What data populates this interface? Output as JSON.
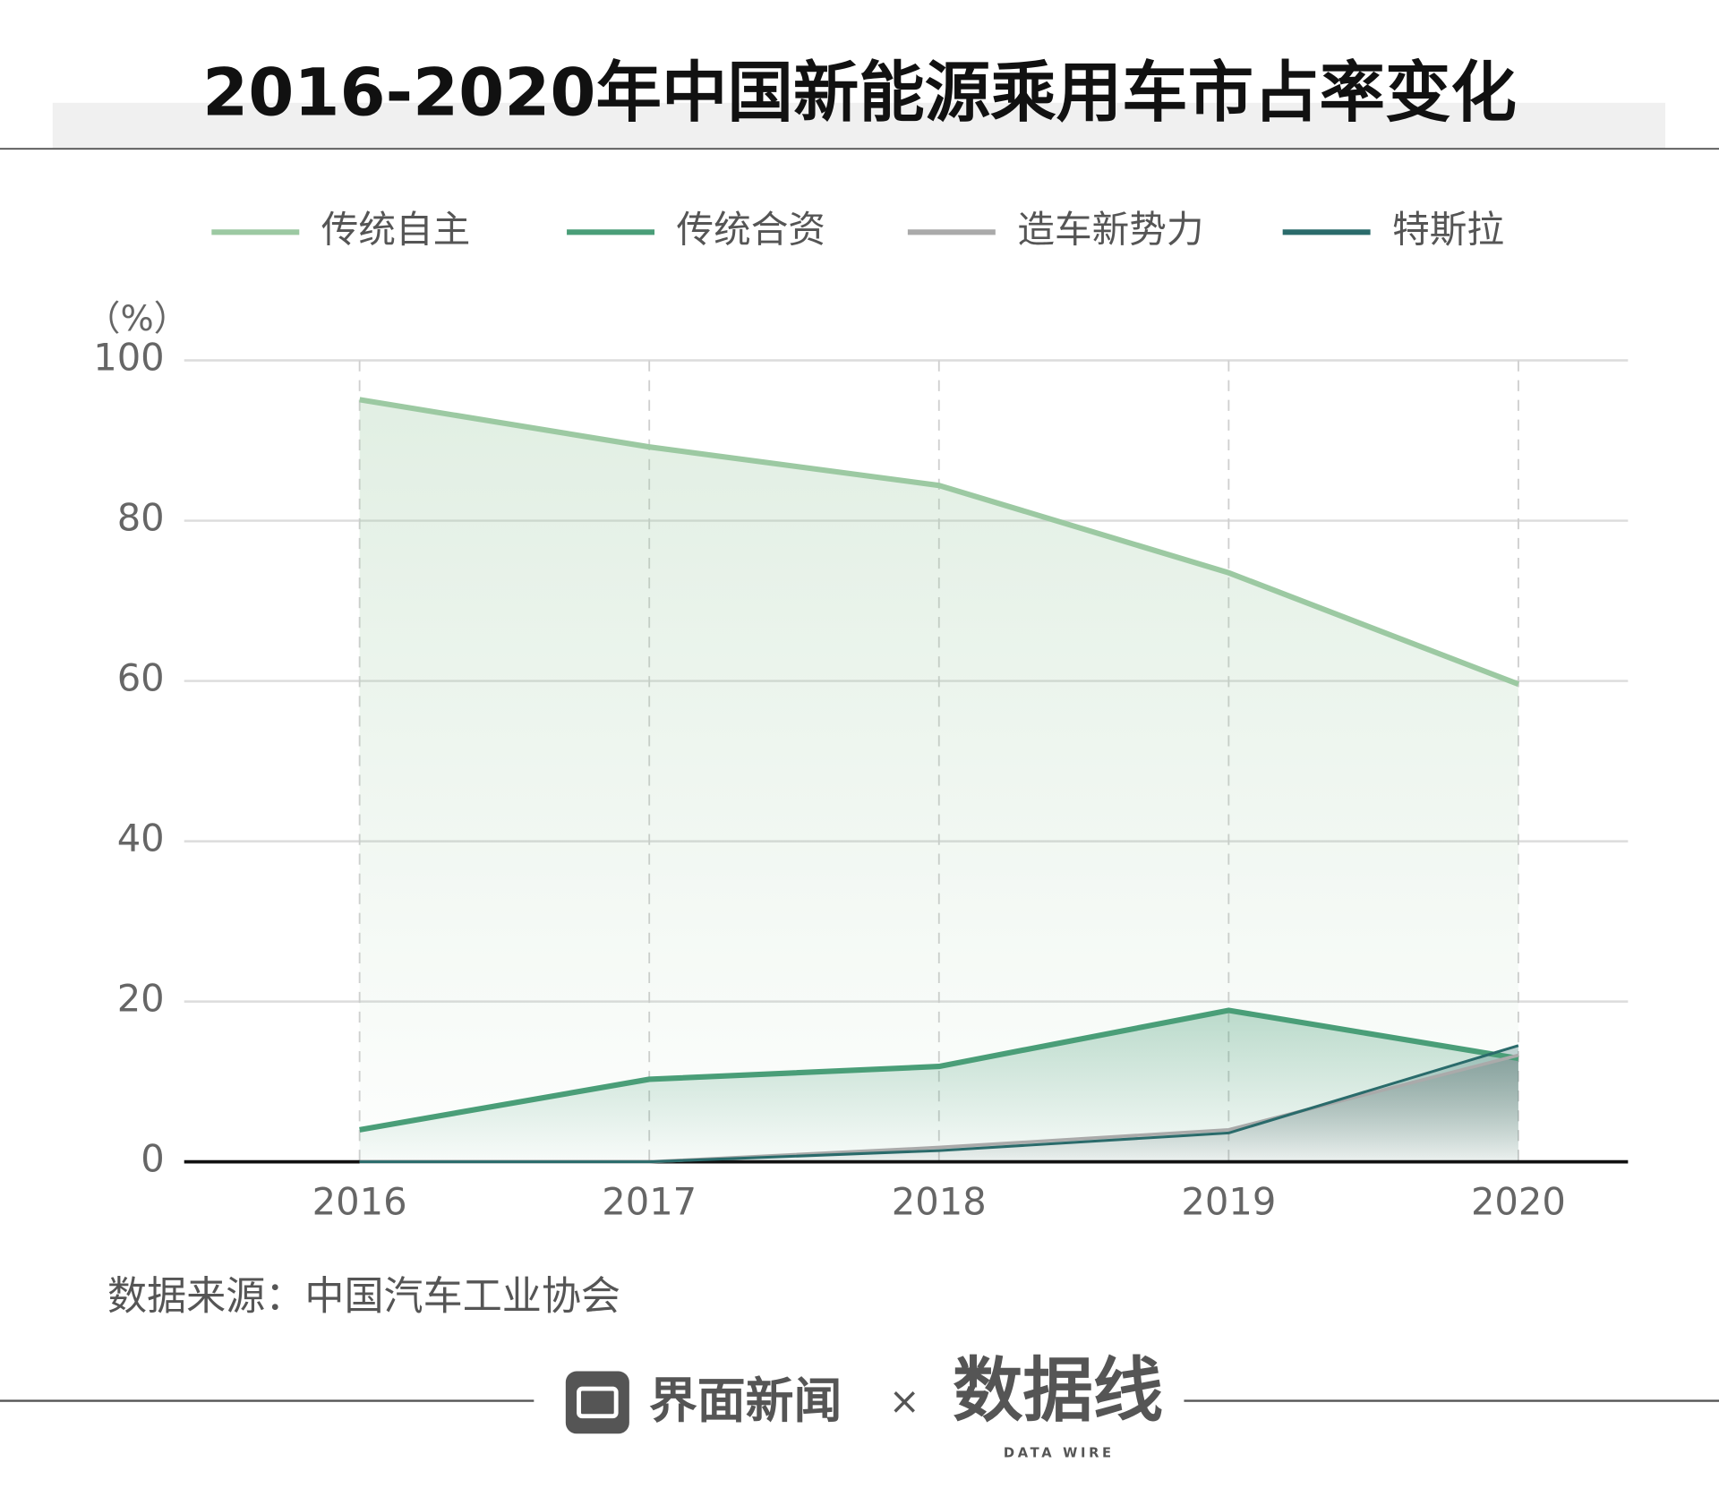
{
  "chart_data": {
    "type": "line",
    "title": "2016-2020年中国新能源乘用车市占率变化",
    "y_label": "（%）",
    "categories": [
      "2016",
      "2017",
      "2018",
      "2019",
      "2020"
    ],
    "series": [
      {
        "name": "传统自主",
        "color": "#9cc9a2",
        "values": [
          95.1,
          89.2,
          84.4,
          73.5,
          59.6
        ]
      },
      {
        "name": "传统合资",
        "color": "#4a9e78",
        "values": [
          4.0,
          10.3,
          11.9,
          18.9,
          12.9
        ]
      },
      {
        "name": "造车新势力",
        "color": "#aaaaaa",
        "values": [
          0,
          0,
          1.8,
          4.0,
          13.3
        ]
      },
      {
        "name": "特斯拉",
        "color": "#2a6b6b",
        "values": [
          0,
          0,
          1.4,
          3.6,
          14.5
        ]
      }
    ],
    "ylim": [
      0,
      100
    ],
    "yticks": [
      0,
      20,
      40,
      60,
      80,
      100
    ],
    "grid": true,
    "legend": "top"
  },
  "source": "数据来源：中国汽车工业协会",
  "footer": {
    "brand1": "界面新闻",
    "separator": "×",
    "brand2": "数据线",
    "brand2_sub": "DATA WIRE"
  }
}
